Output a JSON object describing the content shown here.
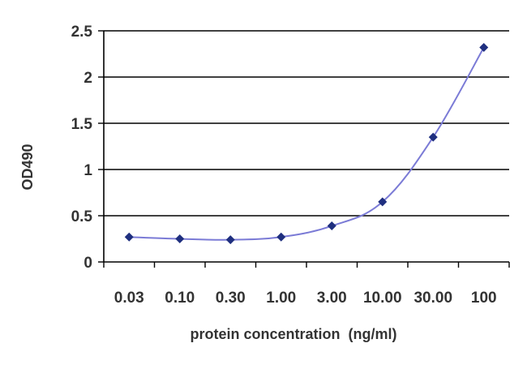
{
  "chart_data": {
    "type": "line",
    "categories": [
      "0.03",
      "0.10",
      "0.30",
      "1.00",
      "3.00",
      "10.00",
      "30.00",
      "100"
    ],
    "series": [
      {
        "values": [
          0.27,
          0.25,
          0.24,
          0.27,
          0.39,
          0.65,
          1.35,
          2.32
        ]
      }
    ],
    "xlabel": "protein concentration  (ng/ml)",
    "ylabel": "OD490",
    "ylim": [
      0,
      2.5
    ],
    "yticks": [
      "0",
      "0.5",
      "1",
      "1.5",
      "2",
      "2.5"
    ],
    "grid": true,
    "legend": "none",
    "colors": {
      "line": "#7b7bd6",
      "marker": "#1f2f7f",
      "grid": "#000000"
    }
  }
}
